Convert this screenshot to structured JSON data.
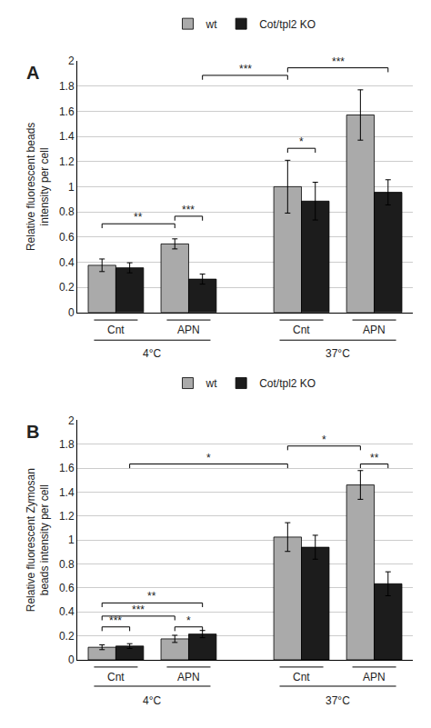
{
  "chart_data": [
    {
      "type": "bar",
      "title": "A",
      "ylabel": "Relative fluorescent beads\nintensity per cell",
      "categories": [
        "Cnt",
        "APN",
        "Cnt",
        "APN"
      ],
      "category_groups": [
        {
          "label": "4°C",
          "categories": [
            0,
            1
          ]
        },
        {
          "label": "37°C",
          "categories": [
            2,
            3
          ]
        }
      ],
      "series": [
        {
          "name": "wt",
          "color": "#aaaaaa",
          "values": [
            0.375,
            0.545,
            1.0,
            1.57
          ],
          "errors": [
            0.05,
            0.04,
            0.21,
            0.2
          ]
        },
        {
          "name": "Cot/tpl2 KO",
          "color": "#1c1c1c",
          "values": [
            0.355,
            0.265,
            0.885,
            0.955
          ],
          "errors": [
            0.04,
            0.04,
            0.15,
            0.1
          ]
        }
      ],
      "brackets": [
        {
          "from": {
            "series": 0,
            "category": 0
          },
          "to": {
            "series": 0,
            "category": 1
          },
          "y": 0.67,
          "label": "**"
        },
        {
          "from": {
            "series": 0,
            "category": 1
          },
          "to": {
            "series": 1,
            "category": 1
          },
          "y": 0.73,
          "label": "***"
        },
        {
          "from": {
            "series": 0,
            "category": 2
          },
          "to": {
            "series": 1,
            "category": 2
          },
          "y": 1.27,
          "label": "*"
        },
        {
          "from": {
            "series": 1,
            "category": 1
          },
          "to": {
            "series": 0,
            "category": 2
          },
          "y": 1.85,
          "label": "***"
        },
        {
          "from": {
            "series": 0,
            "category": 2
          },
          "to": {
            "series": 1,
            "category": 3
          },
          "y": 1.91,
          "label": "***"
        }
      ],
      "ylim": [
        0,
        2.0
      ],
      "yticks": [
        0,
        0.2,
        0.4,
        0.6,
        0.8,
        1.0,
        1.2,
        1.4,
        1.6,
        1.8,
        2.0
      ],
      "grid": true,
      "legend": "top",
      "tick_labels": "y"
    },
    {
      "type": "bar",
      "title": "B",
      "ylabel": "Relative fluorescent Zymosan\nbeads intensity per cell",
      "categories": [
        "Cnt",
        "APN",
        "Cnt",
        "APN"
      ],
      "category_groups": [
        {
          "label": "4°C",
          "categories": [
            0,
            1
          ]
        },
        {
          "label": "37°C",
          "categories": [
            2,
            3
          ]
        }
      ],
      "series": [
        {
          "name": "wt",
          "color": "#aaaaaa",
          "values": [
            0.105,
            0.175,
            1.025,
            1.46
          ],
          "errors": [
            0.02,
            0.03,
            0.12,
            0.12
          ]
        },
        {
          "name": "Cot/tpl2 KO",
          "color": "#1c1c1c",
          "values": [
            0.115,
            0.215,
            0.94,
            0.635
          ],
          "errors": [
            0.02,
            0.03,
            0.1,
            0.1
          ]
        }
      ],
      "brackets": [
        {
          "from": {
            "series": 0,
            "category": 0
          },
          "to": {
            "series": 1,
            "category": 0
          },
          "y": 0.24,
          "label": "***"
        },
        {
          "from": {
            "series": 0,
            "category": 0
          },
          "to": {
            "series": 0,
            "category": 1
          },
          "y": 0.33,
          "label": "***"
        },
        {
          "from": {
            "series": 0,
            "category": 1
          },
          "to": {
            "series": 1,
            "category": 1
          },
          "y": 0.24,
          "label": "*"
        },
        {
          "from": {
            "series": 0,
            "category": 0
          },
          "to": {
            "series": 1,
            "category": 1
          },
          "y": 0.44,
          "label": "**"
        },
        {
          "from": {
            "series": 1,
            "category": 0
          },
          "to": {
            "series": 0,
            "category": 2
          },
          "y": 1.6,
          "label": "*"
        },
        {
          "from": {
            "series": 0,
            "category": 2
          },
          "to": {
            "series": 0,
            "category": 3
          },
          "y": 1.75,
          "label": "*"
        },
        {
          "from": {
            "series": 0,
            "category": 3
          },
          "to": {
            "series": 1,
            "category": 3
          },
          "y": 1.6,
          "label": "**"
        }
      ],
      "ylim": [
        0,
        2.0
      ],
      "yticks": [
        0,
        0.2,
        0.4,
        0.6,
        0.8,
        1.0,
        1.2,
        1.4,
        1.6,
        1.8,
        2.0
      ],
      "grid": true,
      "legend": "top",
      "tick_labels": "y"
    }
  ]
}
